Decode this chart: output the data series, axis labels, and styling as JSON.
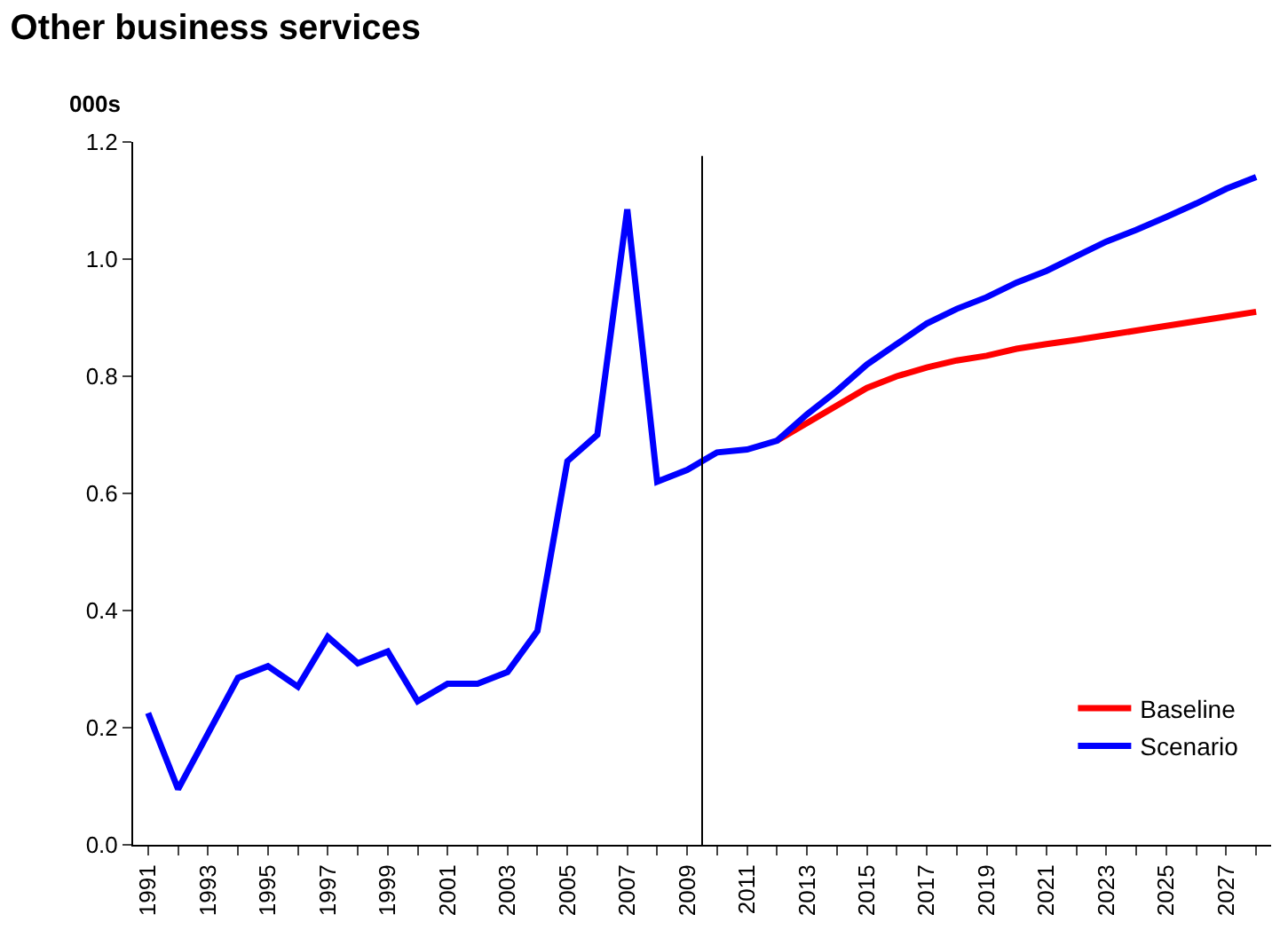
{
  "chart_data": {
    "type": "line",
    "title": "Other business services",
    "ylabel": "000s",
    "x": [
      1991,
      1992,
      1993,
      1994,
      1995,
      1996,
      1997,
      1998,
      1999,
      2000,
      2001,
      2002,
      2003,
      2004,
      2005,
      2006,
      2007,
      2008,
      2009,
      2010,
      2011,
      2012,
      2013,
      2014,
      2015,
      2016,
      2017,
      2018,
      2019,
      2020,
      2021,
      2022,
      2023,
      2024,
      2025,
      2026,
      2027,
      2028
    ],
    "series": [
      {
        "name": "Baseline",
        "color": "#ff0000",
        "values": [
          null,
          null,
          null,
          null,
          null,
          null,
          null,
          null,
          null,
          null,
          null,
          null,
          null,
          null,
          null,
          null,
          null,
          null,
          null,
          null,
          null,
          0.69,
          0.72,
          0.75,
          0.78,
          0.8,
          0.815,
          0.827,
          0.835,
          0.847,
          0.855,
          0.862,
          0.87,
          0.878,
          0.886,
          0.894,
          0.902,
          0.91
        ]
      },
      {
        "name": "Scenario",
        "color": "#0000ff",
        "values": [
          0.225,
          0.095,
          0.19,
          0.285,
          0.305,
          0.27,
          0.355,
          0.31,
          0.33,
          0.245,
          0.275,
          0.275,
          0.295,
          0.365,
          0.655,
          0.7,
          1.085,
          0.62,
          0.64,
          0.67,
          0.675,
          0.69,
          0.735,
          0.775,
          0.82,
          0.855,
          0.89,
          0.915,
          0.935,
          0.96,
          0.98,
          1.005,
          1.03,
          1.05,
          1.072,
          1.095,
          1.12,
          1.14
        ]
      }
    ],
    "xlim": [
      1990.5,
      2028.5
    ],
    "xticks": [
      1991,
      {
        "value": 1992,
        "label": null
      },
      1993,
      {
        "value": 1994,
        "label": null
      },
      1995,
      {
        "value": 1996,
        "label": null
      },
      1997,
      {
        "value": 1998,
        "label": null
      },
      1999,
      {
        "value": 2000,
        "label": null
      },
      2001,
      {
        "value": 2002,
        "label": null
      },
      2003,
      {
        "value": 2004,
        "label": null
      },
      2005,
      {
        "value": 2006,
        "label": null
      },
      2007,
      {
        "value": 2008,
        "label": null
      },
      2009,
      {
        "value": 2010,
        "label": null
      },
      2011,
      {
        "value": 2012,
        "label": null
      },
      2013,
      {
        "value": 2014,
        "label": null
      },
      2015,
      {
        "value": 2016,
        "label": null
      },
      2017,
      {
        "value": 2018,
        "label": null
      },
      2019,
      {
        "value": 2020,
        "label": null
      },
      2021,
      {
        "value": 2022,
        "label": null
      },
      2023,
      {
        "value": 2024,
        "label": null
      },
      2025,
      {
        "value": 2026,
        "label": null
      },
      2027,
      {
        "value": 2028,
        "label": null
      }
    ],
    "ylim": [
      0,
      1.2
    ],
    "yticks": [
      {
        "value": 0,
        "label": "0.0"
      },
      {
        "value": 0.2,
        "label": "0.2"
      },
      {
        "value": 0.4,
        "label": "0.4"
      },
      {
        "value": 0.6,
        "label": "0.6"
      },
      {
        "value": 0.8,
        "label": "0.8"
      },
      {
        "value": 1.0,
        "label": "1.0"
      },
      {
        "value": 1.2,
        "label": "1.2"
      }
    ],
    "ref_lines": [
      {
        "axis": "x",
        "value": 2009.5,
        "color": "#000000"
      }
    ],
    "grid": false,
    "legend": "bottom right",
    "marker": "none",
    "line_style": "solid"
  }
}
